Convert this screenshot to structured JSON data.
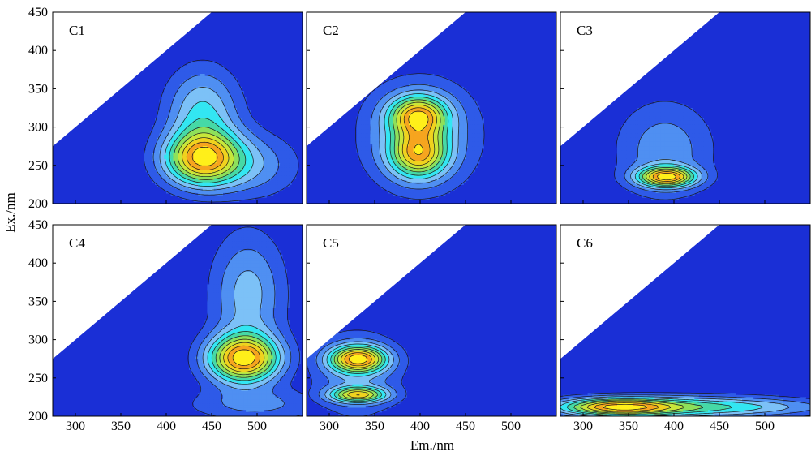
{
  "chart_data": {
    "type": "contour",
    "xlabel": "Em./nm",
    "ylabel": "Ex./nm",
    "xlim": [
      275,
      550
    ],
    "ylim": [
      200,
      450
    ],
    "xticks": [
      300,
      350,
      400,
      450,
      500
    ],
    "yticks": [
      200,
      250,
      300,
      350,
      400,
      450
    ],
    "excluded_region": "Em < Ex (blank upper-left triangle)",
    "colors": {
      "background": "#1a2fd6",
      "levels": [
        "#1a2fd6",
        "#2e5ae8",
        "#4f8ff2",
        "#7cc1f7",
        "#33e6f2",
        "#46d9a6",
        "#8ee05a",
        "#c8e63a",
        "#f0d21e",
        "#f6a51f",
        "#ffef1a"
      ]
    },
    "panels": [
      {
        "label": "C1",
        "peaks": [
          {
            "em": 440,
            "ex": 258,
            "sx": 30,
            "sy": 25,
            "amp": 1.0
          },
          {
            "em": 440,
            "ex": 320,
            "sx": 28,
            "sy": 40,
            "amp": 0.45
          },
          {
            "em": 500,
            "ex": 250,
            "sx": 35,
            "sy": 30,
            "amp": 0.25
          }
        ]
      },
      {
        "label": "C2",
        "peaks": [
          {
            "em": 398,
            "ex": 315,
            "sx": 22,
            "sy": 18,
            "amp": 1.0
          },
          {
            "em": 398,
            "ex": 265,
            "sx": 22,
            "sy": 22,
            "amp": 0.95
          },
          {
            "em": 400,
            "ex": 290,
            "sx": 45,
            "sy": 50,
            "amp": 0.45
          }
        ]
      },
      {
        "label": "C3",
        "peaks": [
          {
            "em": 392,
            "ex": 235,
            "sx": 22,
            "sy": 9,
            "amp": 1.0
          },
          {
            "em": 390,
            "ex": 270,
            "sx": 38,
            "sy": 45,
            "amp": 0.3
          }
        ]
      },
      {
        "label": "C4",
        "peaks": [
          {
            "em": 485,
            "ex": 275,
            "sx": 28,
            "sy": 22,
            "amp": 1.0
          },
          {
            "em": 490,
            "ex": 360,
            "sx": 28,
            "sy": 55,
            "amp": 0.35
          },
          {
            "em": 500,
            "ex": 215,
            "sx": 55,
            "sy": 15,
            "amp": 0.22
          }
        ]
      },
      {
        "label": "C5",
        "peaks": [
          {
            "em": 332,
            "ex": 275,
            "sx": 22,
            "sy": 12,
            "amp": 1.0
          },
          {
            "em": 332,
            "ex": 228,
            "sx": 22,
            "sy": 7,
            "amp": 0.8
          },
          {
            "em": 330,
            "ex": 255,
            "sx": 35,
            "sy": 40,
            "amp": 0.3
          }
        ]
      },
      {
        "label": "C6",
        "peaks": [
          {
            "em": 335,
            "ex": 212,
            "sx": 45,
            "sy": 8,
            "amp": 1.0
          },
          {
            "em": 420,
            "ex": 212,
            "sx": 70,
            "sy": 10,
            "amp": 0.55
          },
          {
            "em": 520,
            "ex": 212,
            "sx": 60,
            "sy": 8,
            "amp": 0.18
          }
        ]
      }
    ]
  }
}
